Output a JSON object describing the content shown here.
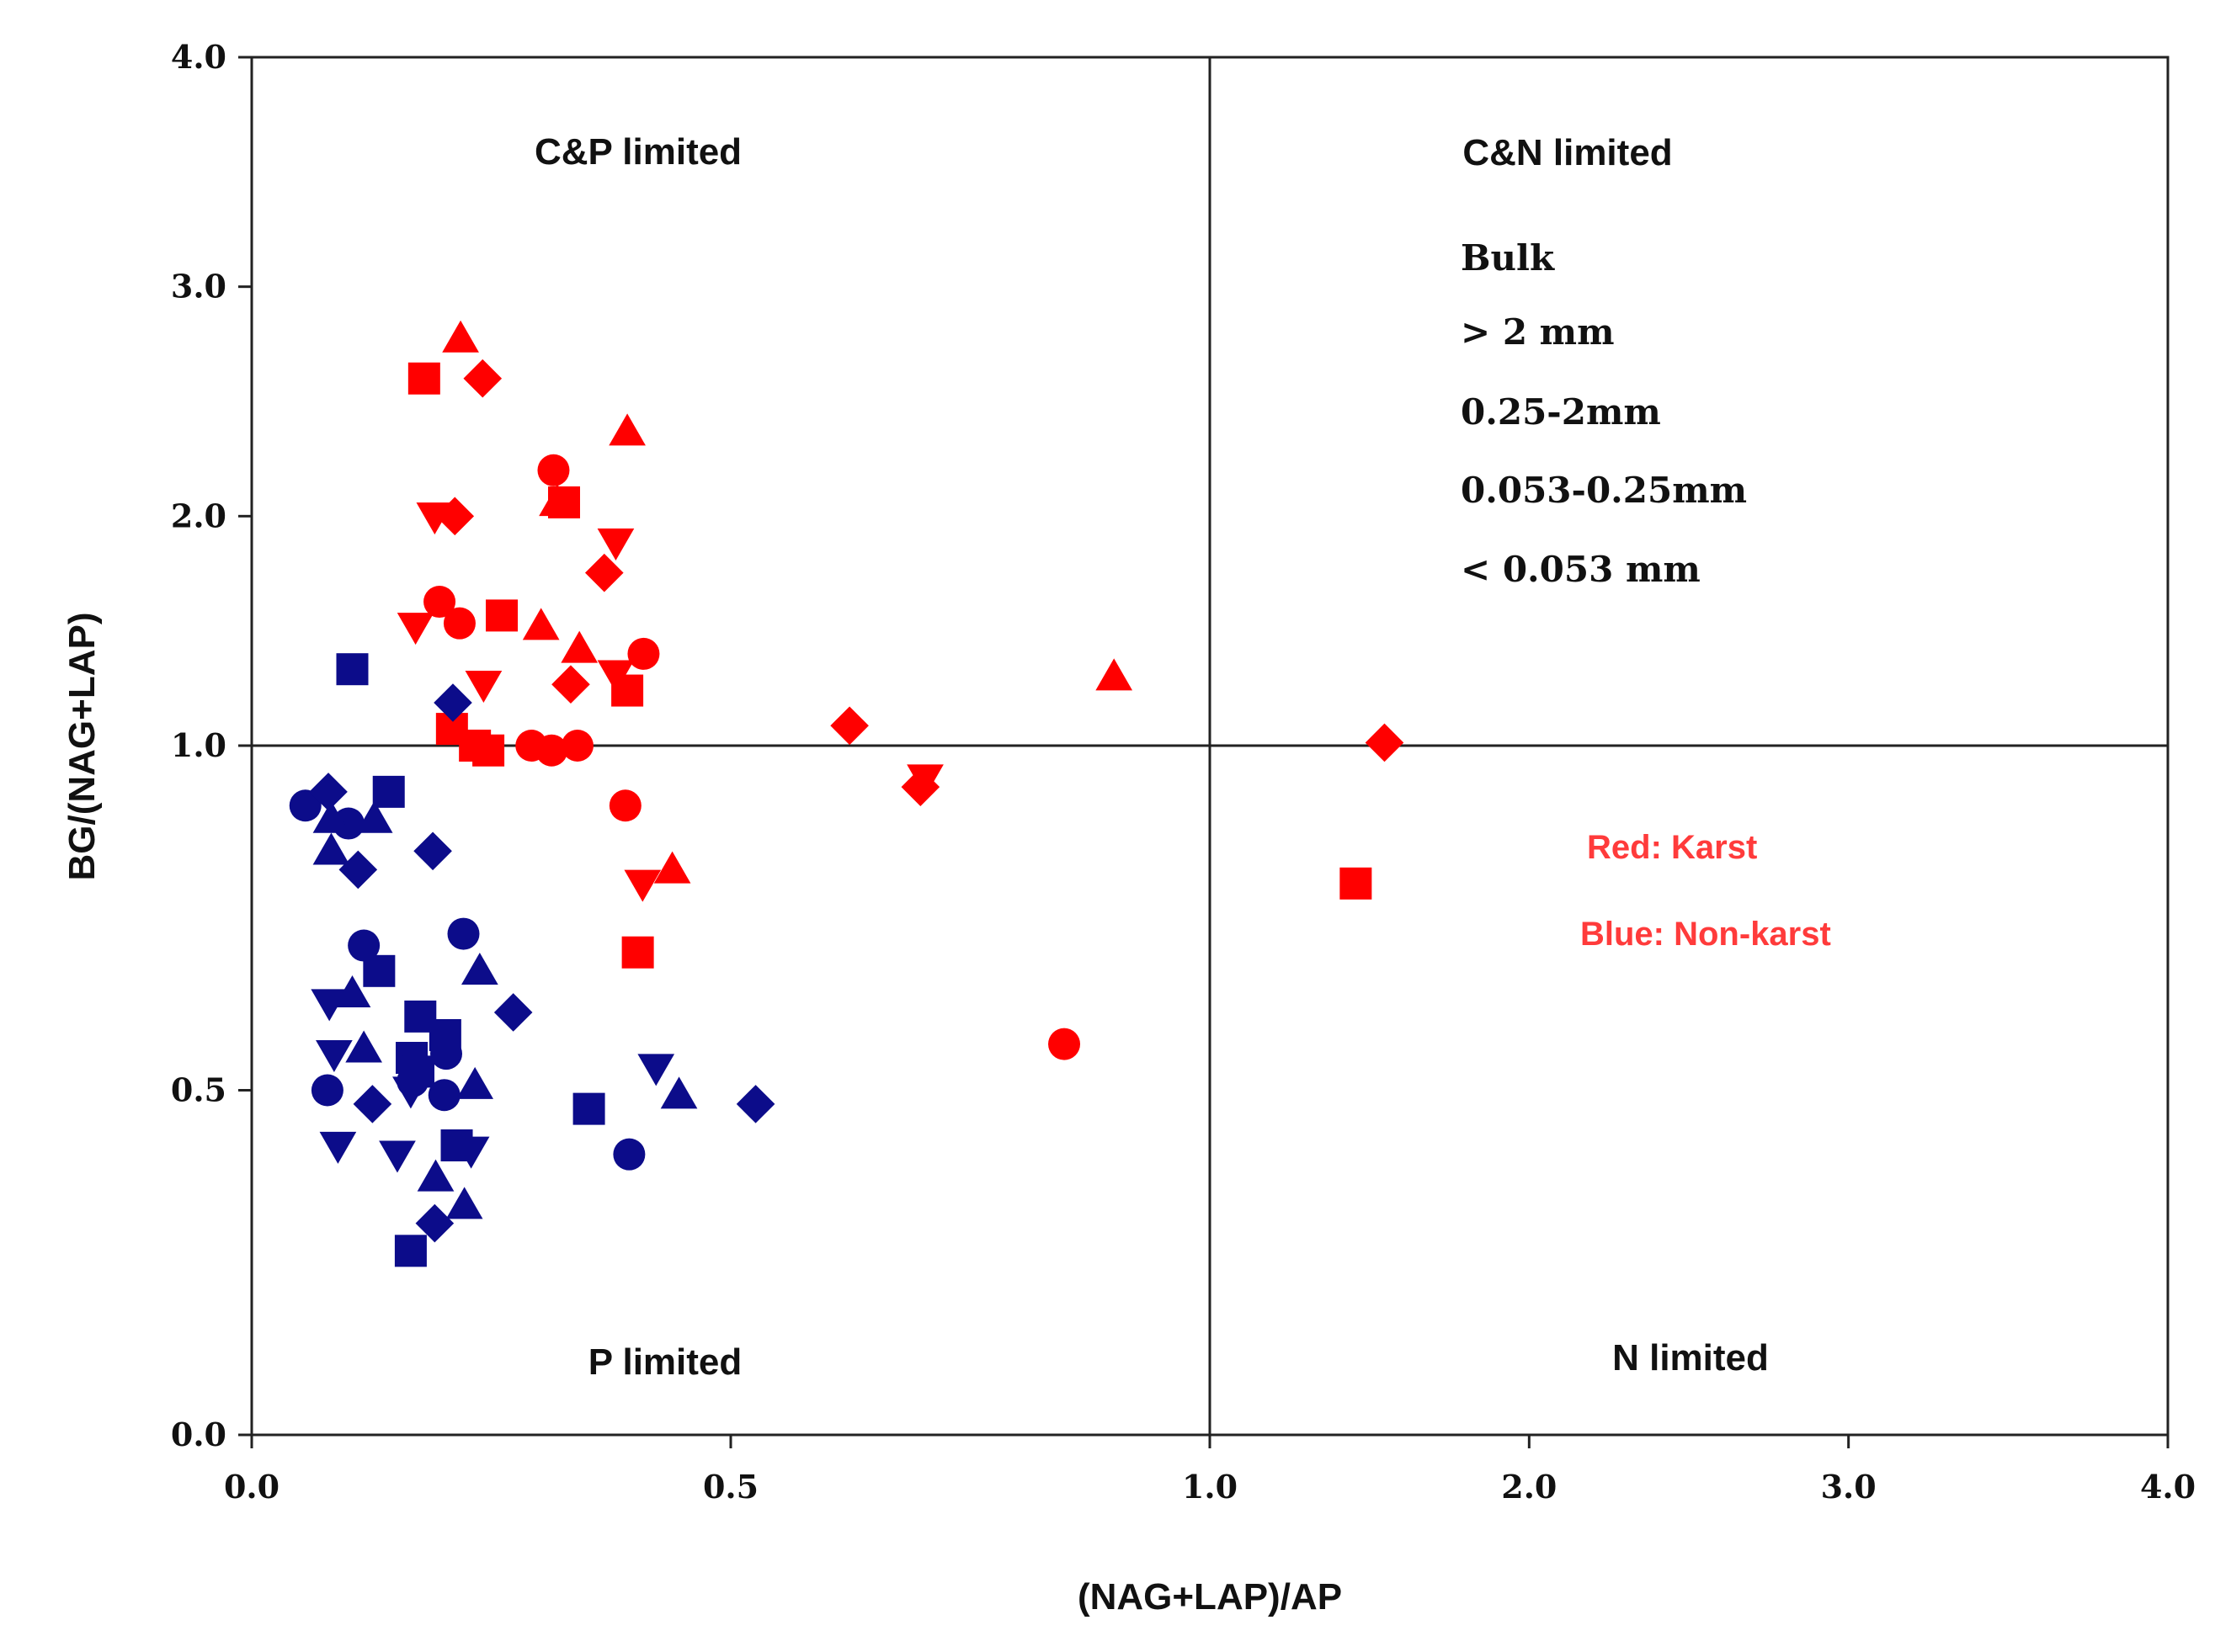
{
  "chart_data": {
    "type": "scatter",
    "xlabel": "(NAG+LAP)/AP",
    "ylabel": "BG/(NAG+LAP)",
    "x_ticks": [
      "0.0",
      "0.5",
      "1.0",
      "2.0",
      "3.0",
      "4.0"
    ],
    "y_ticks": [
      "0.0",
      "0.5",
      "1.0",
      "2.0",
      "3.0",
      "4.0"
    ],
    "x_tick_values": [
      0,
      0.5,
      1,
      2,
      3,
      4
    ],
    "y_tick_values": [
      0,
      0.5,
      1,
      2,
      3,
      4
    ],
    "xlim": [
      0,
      4
    ],
    "ylim": [
      0,
      4
    ],
    "axis_scale": "piecewise: 0-1 occupies left half, 1-4 occupies right half; same on y",
    "threshold_lines": {
      "x": 1.0,
      "y": 1.0
    },
    "quadrant_labels": {
      "top_left": "C&P  limited",
      "top_right": "C&N  limited",
      "bottom_left": "P  limited",
      "bottom_right": "N limited"
    },
    "legend": {
      "entries": [
        {
          "label": "Bulk",
          "marker": "circle"
        },
        {
          "label": "> 2 mm",
          "marker": "triangle-up"
        },
        {
          "label": "0.25-2mm",
          "marker": "triangle-down"
        },
        {
          "label": "0.053-0.25mm",
          "marker": "square"
        },
        {
          "label": "< 0.053 mm",
          "marker": "diamond"
        }
      ]
    },
    "color_notes": [
      {
        "text": "Red:  Karst",
        "color": "#ff3b3b"
      },
      {
        "text": "Blue:  Non-karst",
        "color": "#ff3b3b"
      }
    ],
    "colors": {
      "karst": "#ff0000",
      "non_karst": "#0c0c8a"
    },
    "series": [
      {
        "name": "Karst",
        "color": "#ff0000",
        "points": [
          {
            "m": "circle",
            "x": 0.196,
            "y": 1.627
          },
          {
            "m": "circle",
            "x": 0.217,
            "y": 1.533
          },
          {
            "m": "circle",
            "x": 0.315,
            "y": 2.2
          },
          {
            "m": "circle",
            "x": 0.292,
            "y": 1.0
          },
          {
            "m": "circle",
            "x": 0.313,
            "y": 0.993
          },
          {
            "m": "circle",
            "x": 0.34,
            "y": 1.0
          },
          {
            "m": "circle",
            "x": 0.409,
            "y": 1.4
          },
          {
            "m": "circle",
            "x": 0.39,
            "y": 0.913
          },
          {
            "m": "circle",
            "x": 0.848,
            "y": 0.567
          },
          {
            "m": "triangle-up",
            "x": 0.218,
            "y": 2.773
          },
          {
            "m": "triangle-up",
            "x": 0.319,
            "y": 2.06
          },
          {
            "m": "triangle-up",
            "x": 0.392,
            "y": 2.367
          },
          {
            "m": "triangle-up",
            "x": 0.302,
            "y": 1.52
          },
          {
            "m": "triangle-up",
            "x": 0.342,
            "y": 1.42
          },
          {
            "m": "triangle-up",
            "x": 0.439,
            "y": 0.82
          },
          {
            "m": "triangle-up",
            "x": 0.9,
            "y": 1.3
          },
          {
            "m": "triangle-down",
            "x": 0.191,
            "y": 2.0
          },
          {
            "m": "triangle-down",
            "x": 0.171,
            "y": 1.52
          },
          {
            "m": "triangle-down",
            "x": 0.242,
            "y": 1.267
          },
          {
            "m": "triangle-down",
            "x": 0.38,
            "y": 1.887
          },
          {
            "m": "triangle-down",
            "x": 0.38,
            "y": 1.313
          },
          {
            "m": "triangle-down",
            "x": 0.408,
            "y": 0.8
          },
          {
            "m": "triangle-down",
            "x": 0.703,
            "y": 0.953
          },
          {
            "m": "square",
            "x": 0.18,
            "y": 2.6
          },
          {
            "m": "square",
            "x": 0.326,
            "y": 2.06
          },
          {
            "m": "square",
            "x": 0.261,
            "y": 1.567
          },
          {
            "m": "square",
            "x": 0.392,
            "y": 1.24
          },
          {
            "m": "square",
            "x": 0.209,
            "y": 1.073
          },
          {
            "m": "square",
            "x": 0.233,
            "y": 1.0
          },
          {
            "m": "square",
            "x": 0.247,
            "y": 0.993
          },
          {
            "m": "square",
            "x": 0.403,
            "y": 0.7
          },
          {
            "m": "square",
            "x": 1.457,
            "y": 0.8
          },
          {
            "m": "diamond",
            "x": 0.241,
            "y": 2.6
          },
          {
            "m": "diamond",
            "x": 0.212,
            "y": 2.0
          },
          {
            "m": "diamond",
            "x": 0.368,
            "y": 1.753
          },
          {
            "m": "diamond",
            "x": 0.333,
            "y": 1.267
          },
          {
            "m": "diamond",
            "x": 0.624,
            "y": 1.087
          },
          {
            "m": "diamond",
            "x": 0.698,
            "y": 0.94
          },
          {
            "m": "diamond",
            "x": 1.547,
            "y": 1.013
          }
        ]
      },
      {
        "name": "Non-karst",
        "color": "#0c0c8a",
        "points": [
          {
            "m": "circle",
            "x": 0.056,
            "y": 0.913
          },
          {
            "m": "circle",
            "x": 0.101,
            "y": 0.887
          },
          {
            "m": "circle",
            "x": 0.117,
            "y": 0.71
          },
          {
            "m": "circle",
            "x": 0.221,
            "y": 0.727
          },
          {
            "m": "circle",
            "x": 0.203,
            "y": 0.553
          },
          {
            "m": "circle",
            "x": 0.168,
            "y": 0.513
          },
          {
            "m": "circle",
            "x": 0.201,
            "y": 0.493
          },
          {
            "m": "circle",
            "x": 0.079,
            "y": 0.5
          },
          {
            "m": "circle",
            "x": 0.394,
            "y": 0.407
          },
          {
            "m": "triangle-up",
            "x": 0.083,
            "y": 0.893
          },
          {
            "m": "triangle-up",
            "x": 0.128,
            "y": 0.893
          },
          {
            "m": "triangle-up",
            "x": 0.083,
            "y": 0.847
          },
          {
            "m": "triangle-up",
            "x": 0.238,
            "y": 0.673
          },
          {
            "m": "triangle-up",
            "x": 0.105,
            "y": 0.64
          },
          {
            "m": "triangle-up",
            "x": 0.117,
            "y": 0.56
          },
          {
            "m": "triangle-up",
            "x": 0.233,
            "y": 0.507
          },
          {
            "m": "triangle-up",
            "x": 0.446,
            "y": 0.493
          },
          {
            "m": "triangle-up",
            "x": 0.192,
            "y": 0.373
          },
          {
            "m": "triangle-up",
            "x": 0.222,
            "y": 0.333
          },
          {
            "m": "triangle-down",
            "x": 0.081,
            "y": 0.627
          },
          {
            "m": "triangle-down",
            "x": 0.086,
            "y": 0.553
          },
          {
            "m": "triangle-down",
            "x": 0.166,
            "y": 0.5
          },
          {
            "m": "triangle-down",
            "x": 0.422,
            "y": 0.533
          },
          {
            "m": "triangle-down",
            "x": 0.09,
            "y": 0.42
          },
          {
            "m": "triangle-down",
            "x": 0.152,
            "y": 0.407
          },
          {
            "m": "triangle-down",
            "x": 0.229,
            "y": 0.413
          },
          {
            "m": "square",
            "x": 0.105,
            "y": 1.333
          },
          {
            "m": "square",
            "x": 0.143,
            "y": 0.933
          },
          {
            "m": "square",
            "x": 0.133,
            "y": 0.673
          },
          {
            "m": "square",
            "x": 0.176,
            "y": 0.607
          },
          {
            "m": "square",
            "x": 0.202,
            "y": 0.58
          },
          {
            "m": "square",
            "x": 0.167,
            "y": 0.547
          },
          {
            "m": "square",
            "x": 0.174,
            "y": 0.527
          },
          {
            "m": "square",
            "x": 0.214,
            "y": 0.42
          },
          {
            "m": "square",
            "x": 0.352,
            "y": 0.473
          },
          {
            "m": "square",
            "x": 0.166,
            "y": 0.267
          },
          {
            "m": "diamond",
            "x": 0.08,
            "y": 0.933
          },
          {
            "m": "diamond",
            "x": 0.21,
            "y": 1.187
          },
          {
            "m": "diamond",
            "x": 0.189,
            "y": 0.847
          },
          {
            "m": "diamond",
            "x": 0.111,
            "y": 0.82
          },
          {
            "m": "diamond",
            "x": 0.273,
            "y": 0.613
          },
          {
            "m": "diamond",
            "x": 0.126,
            "y": 0.48
          },
          {
            "m": "diamond",
            "x": 0.526,
            "y": 0.48
          },
          {
            "m": "diamond",
            "x": 0.191,
            "y": 0.307
          }
        ]
      }
    ]
  }
}
